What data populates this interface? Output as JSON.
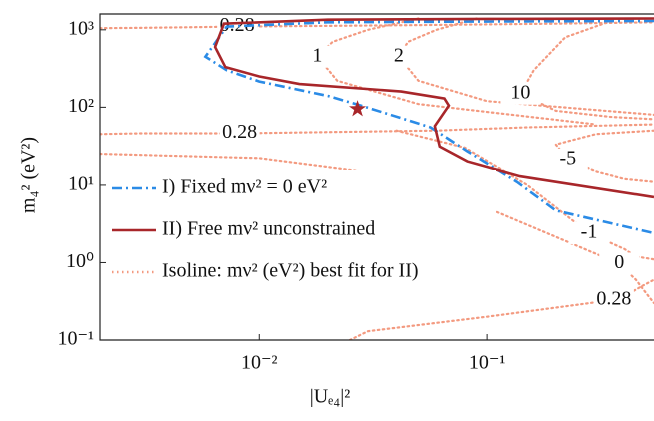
{
  "chart_data": {
    "type": "line",
    "x_label": "|Uₑ₄|²",
    "y_label": "m₄² (eV²)",
    "xscale": "log",
    "yscale": "log",
    "xlim": [
      0.002,
      0.54
    ],
    "ylim": [
      0.1,
      1600
    ],
    "xticks": [
      {
        "value": 0.01,
        "label": "10⁻²"
      },
      {
        "value": 0.1,
        "label": "10⁻¹"
      }
    ],
    "yticks": [
      {
        "value": 0.1,
        "label": "10⁻¹"
      },
      {
        "value": 1,
        "label": "10⁰"
      },
      {
        "value": 10,
        "label": "10¹"
      },
      {
        "value": 100,
        "label": "10²"
      },
      {
        "value": 1000,
        "label": "10³"
      }
    ],
    "legend": "lower left",
    "series": [
      {
        "name": "I)  Fixed mν² = 0 eV²",
        "color": "#2b8be6",
        "dash": "dash-dot",
        "x": [
          0.54,
          0.1,
          0.02,
          0.0072,
          0.0058,
          0.0072,
          0.01,
          0.02,
          0.028,
          0.0565,
          0.082,
          0.135,
          0.2,
          0.54
        ],
        "values": [
          1300,
          1280,
          1250,
          1100,
          450,
          300,
          215,
          140,
          105,
          55,
          27,
          11,
          4.7,
          2.4
        ]
      },
      {
        "name": "II) Free mν² unconstrained",
        "color": "#a8262a",
        "dash": "solid",
        "x": [
          0.54,
          0.1,
          0.02,
          0.007,
          0.0064,
          0.0071,
          0.01,
          0.015,
          0.042,
          0.065,
          0.068,
          0.059,
          0.062,
          0.082,
          0.139,
          0.54
        ],
        "values": [
          1400,
          1380,
          1350,
          1200,
          600,
          330,
          250,
          200,
          160,
          130,
          105,
          57,
          31,
          20,
          13,
          7
        ]
      },
      {
        "name": "Isoline: mν² (eV²) best fit for II)",
        "color": "#f39a80",
        "dash": "dotted",
        "x": [],
        "values": []
      }
    ],
    "best_fit": {
      "x": 0.027,
      "y": 95,
      "color": "#a8262a"
    },
    "isolines": [
      {
        "label": "0.28",
        "x": [
          0.002,
          0.003,
          0.005,
          0.008,
          0.05,
          0.2,
          0.54
        ],
        "y": [
          1050,
          1060,
          1080,
          1100,
          1150,
          1200,
          1250
        ]
      },
      {
        "label": "1",
        "x": [
          0.05,
          0.03,
          0.021,
          0.018,
          0.022,
          0.05,
          0.3
        ],
        "y": [
          1400,
          1000,
          700,
          450,
          220,
          110,
          60
        ]
      },
      {
        "label": "2",
        "x": [
          0.09,
          0.06,
          0.045,
          0.041,
          0.05,
          0.1,
          0.54
        ],
        "y": [
          1400,
          1000,
          700,
          450,
          220,
          120,
          80
        ]
      },
      {
        "label": "10",
        "x": [
          0.35,
          0.22,
          0.16,
          0.14,
          0.2,
          0.35,
          0.54
        ],
        "y": [
          1300,
          800,
          300,
          150,
          90,
          75,
          70
        ]
      },
      {
        "label": "0.28",
        "x": [
          0.002,
          0.003,
          0.005,
          0.0082,
          0.06,
          0.15,
          0.54
        ],
        "y": [
          45,
          46,
          46,
          46,
          50,
          55,
          60
        ]
      },
      {
        "label": "-5",
        "x": [
          0.54,
          0.3,
          0.2,
          0.226,
          0.3,
          0.4,
          0.54
        ],
        "y": [
          50,
          45,
          33,
          21,
          15,
          12,
          11
        ]
      },
      {
        "label": "-1",
        "x": [
          0.04,
          0.08,
          0.15,
          0.28,
          0.4,
          0.45,
          0.54
        ],
        "y": [
          50,
          30,
          10,
          2.4,
          1.5,
          1.2,
          1.1
        ]
      },
      {
        "label": "0",
        "x": [
          0.002,
          0.01,
          0.05,
          0.38,
          0.45,
          0.5,
          0.54
        ],
        "y": [
          25,
          22,
          12,
          0.97,
          0.6,
          0.4,
          0.3
        ]
      },
      {
        "label": "0.28",
        "x": [
          0.025,
          0.03,
          0.1,
          0.36,
          0.42,
          0.48,
          0.54
        ],
        "y": [
          0.1,
          0.13,
          0.2,
          0.33,
          0.4,
          0.5,
          0.6
        ]
      }
    ]
  }
}
